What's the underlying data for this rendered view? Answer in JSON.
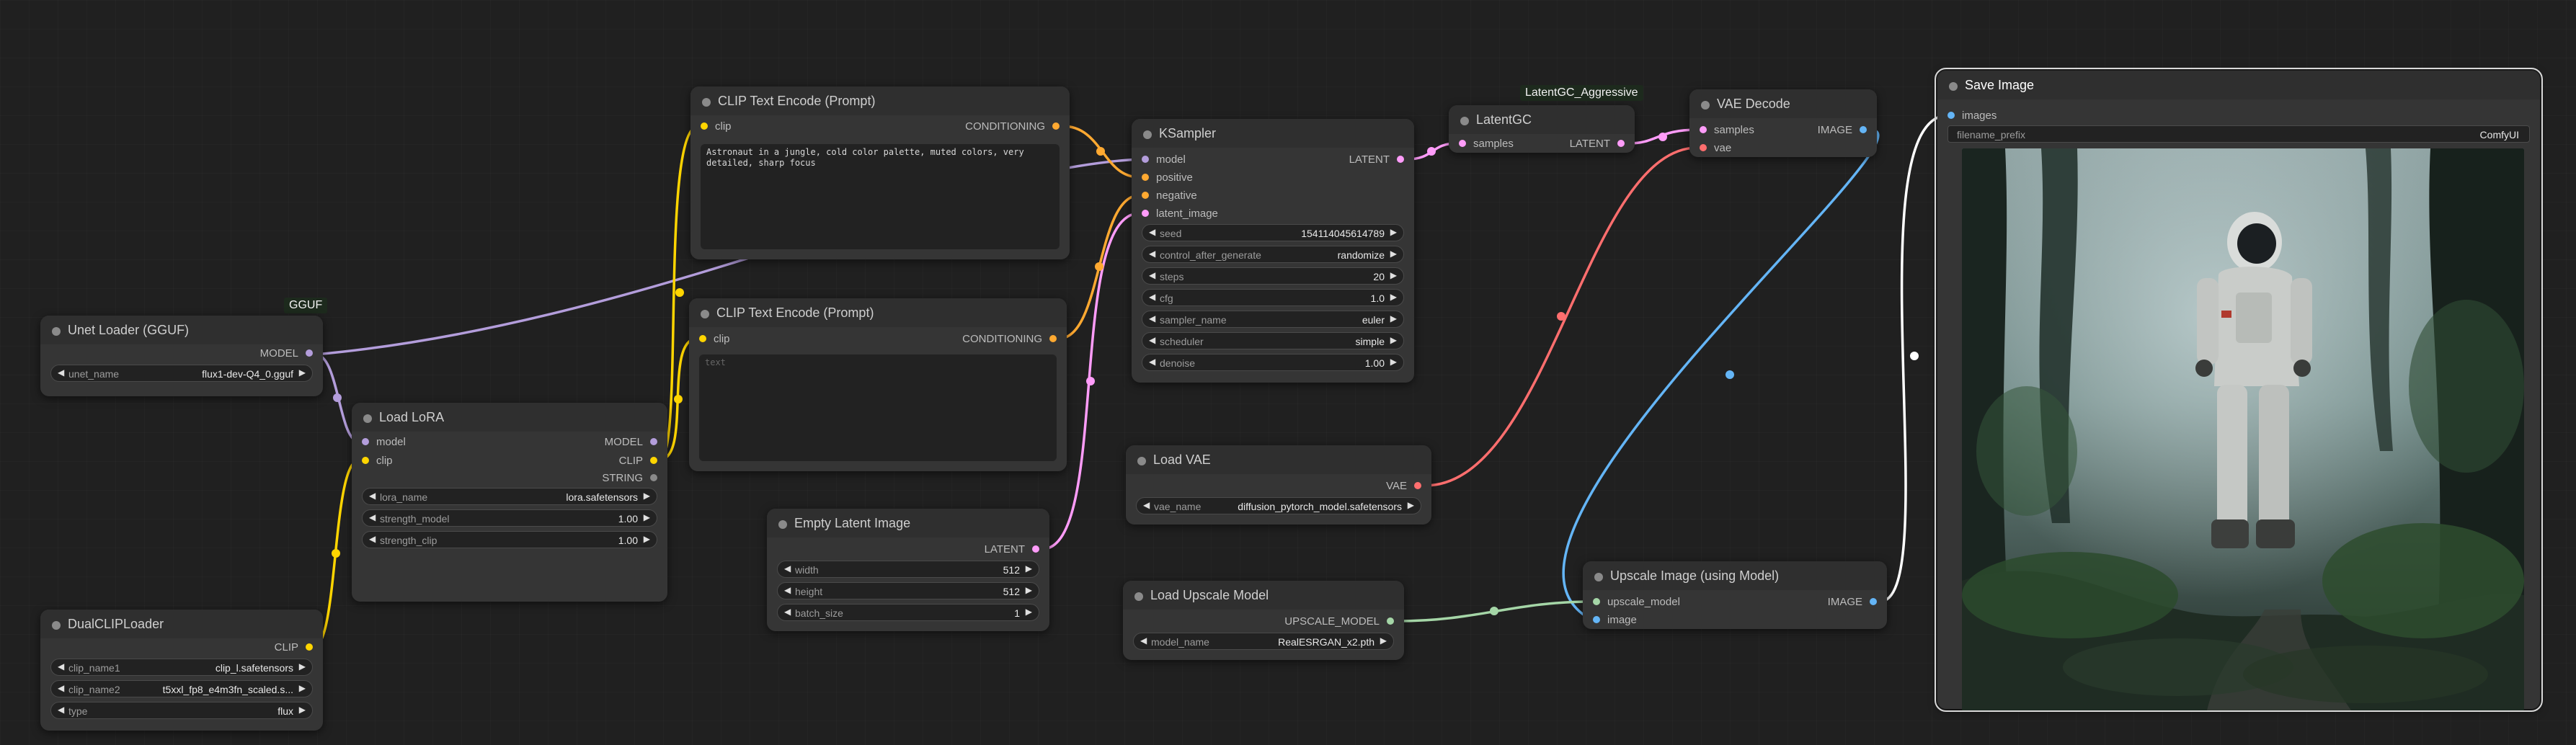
{
  "badges": {
    "gguf": "GGUF",
    "latentgc": "LatentGC_Aggressive"
  },
  "colors": {
    "model": "#b39ddb",
    "clip": "#ffd500",
    "conditioning": "#ffa931",
    "latent": "#ff9cf9",
    "vae": "#ff6e6e",
    "image": "#64b5f6",
    "upscale_model": "#a5d6a7"
  },
  "nodes": {
    "unet_loader": {
      "title": "Unet Loader (GGUF)",
      "out_model": "MODEL",
      "unet_name_label": "unet_name",
      "unet_name_value": "flux1-dev-Q4_0.gguf"
    },
    "dual_clip": {
      "title": "DualCLIPLoader",
      "out_clip": "CLIP",
      "clip_name1_label": "clip_name1",
      "clip_name1_value": "clip_l.safetensors",
      "clip_name2_label": "clip_name2",
      "clip_name2_value": "t5xxl_fp8_e4m3fn_scaled.s...",
      "type_label": "type",
      "type_value": "flux"
    },
    "load_lora": {
      "title": "Load LoRA",
      "in_model": "model",
      "in_clip": "clip",
      "out_model": "MODEL",
      "out_clip": "CLIP",
      "out_string": "STRING",
      "lora_name_label": "lora_name",
      "lora_name_value": "lora.safetensors",
      "strength_model_label": "strength_model",
      "strength_model_value": "1.00",
      "strength_clip_label": "strength_clip",
      "strength_clip_value": "1.00"
    },
    "clip_pos": {
      "title": "CLIP Text Encode (Prompt)",
      "in_clip": "clip",
      "out": "CONDITIONING",
      "text": "Astronaut in a jungle, cold color palette, muted colors, very detailed, sharp focus"
    },
    "clip_neg": {
      "title": "CLIP Text Encode (Prompt)",
      "in_clip": "clip",
      "out": "CONDITIONING",
      "placeholder": "text"
    },
    "empty_latent": {
      "title": "Empty Latent Image",
      "out": "LATENT",
      "width_label": "width",
      "width_value": "512",
      "height_label": "height",
      "height_value": "512",
      "batch_label": "batch_size",
      "batch_value": "1"
    },
    "ksampler": {
      "title": "KSampler",
      "in_model": "model",
      "in_positive": "positive",
      "in_negative": "negative",
      "in_latent": "latent_image",
      "out": "LATENT",
      "widgets": [
        {
          "label": "seed",
          "value": "154114045614789"
        },
        {
          "label": "control_after_generate",
          "value": "randomize"
        },
        {
          "label": "steps",
          "value": "20"
        },
        {
          "label": "cfg",
          "value": "1.0"
        },
        {
          "label": "sampler_name",
          "value": "euler"
        },
        {
          "label": "scheduler",
          "value": "simple"
        },
        {
          "label": "denoise",
          "value": "1.00"
        }
      ]
    },
    "latentgc": {
      "title": "LatentGC",
      "in_samples": "samples",
      "out": "LATENT"
    },
    "vae_decode": {
      "title": "VAE Decode",
      "in_samples": "samples",
      "in_vae": "vae",
      "out": "IMAGE"
    },
    "load_vae": {
      "title": "Load VAE",
      "out": "VAE",
      "vae_name_label": "vae_name",
      "vae_name_value": "diffusion_pytorch_model.safetensors"
    },
    "load_upscale": {
      "title": "Load Upscale Model",
      "out": "UPSCALE_MODEL",
      "model_name_label": "model_name",
      "model_name_value": "RealESRGAN_x2.pth"
    },
    "upscale_image": {
      "title": "Upscale Image (using Model)",
      "in_upscale": "upscale_model",
      "in_image": "image",
      "out": "IMAGE"
    },
    "save_image": {
      "title": "Save Image",
      "in_images": "images",
      "filename_prefix_label": "filename_prefix",
      "filename_prefix_value": "ComfyUI"
    }
  }
}
